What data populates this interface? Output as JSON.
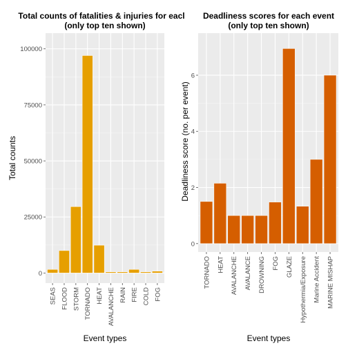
{
  "chart_data": [
    {
      "type": "bar",
      "title": "Total counts of fatalities & injuries for eacl",
      "subtitle": "(only top ten shown)",
      "xlabel": "Event types",
      "ylabel": "Total counts",
      "categories": [
        "SEAS",
        "FLOOD",
        "STORM",
        "TORNADO",
        "HEAT",
        "AVALANCHE",
        "RAIN",
        "FIRE",
        "COLD",
        "FOG"
      ],
      "values": [
        1600,
        10000,
        29600,
        97000,
        12400,
        500,
        500,
        1600,
        500,
        800
      ],
      "yticks": [
        0,
        25000,
        50000,
        75000,
        100000
      ],
      "ylim": [
        -4500,
        107000
      ],
      "color": "#E69F00",
      "background": "#EBEBEB",
      "grid": true
    },
    {
      "type": "bar",
      "title": "Deadliness scores for each event",
      "subtitle": "(only top ten shown)",
      "xlabel": "Event types",
      "ylabel": "Deadliness score (no. per event)",
      "categories": [
        "TORNADO",
        "HEAT",
        "AVALANCHE",
        "AVALANCE",
        "DROWNING",
        "FOG",
        "GLAZE",
        "Hypothermia/Exposure",
        "Marine Accident",
        "MARINE MISHAP"
      ],
      "values": [
        1.5,
        2.15,
        1.0,
        1.0,
        1.0,
        1.48,
        6.95,
        1.33,
        3.0,
        6.0
      ],
      "yticks": [
        0,
        2,
        4,
        6
      ],
      "ylim": [
        -0.3,
        7.5
      ],
      "color": "#D55E00",
      "background": "#EBEBEB",
      "grid": true
    }
  ]
}
